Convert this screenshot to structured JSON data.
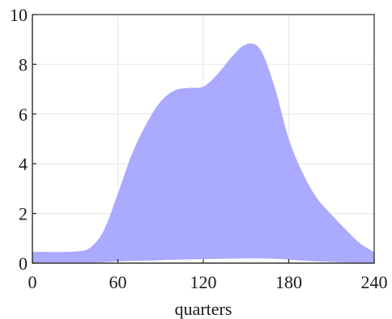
{
  "chart_data": {
    "type": "area",
    "title": "",
    "xlabel": "quarters",
    "ylabel": "",
    "xlim": [
      0,
      240
    ],
    "ylim": [
      0,
      10
    ],
    "x_ticks": [
      0,
      60,
      120,
      180,
      240
    ],
    "y_ticks": [
      0,
      2,
      4,
      6,
      8,
      10
    ],
    "grid": true,
    "fill_color": "#aaaaff",
    "band": {
      "x": [
        0,
        10,
        20,
        30,
        40,
        50,
        60,
        70,
        80,
        90,
        100,
        110,
        120,
        130,
        140,
        150,
        160,
        170,
        180,
        190,
        200,
        210,
        220,
        230,
        240
      ],
      "upper": [
        0.45,
        0.45,
        0.45,
        0.47,
        0.6,
        1.3,
        2.8,
        4.4,
        5.6,
        6.5,
        6.95,
        7.05,
        7.1,
        7.6,
        8.3,
        8.8,
        8.6,
        7.1,
        5.0,
        3.6,
        2.6,
        1.95,
        1.35,
        0.8,
        0.45
      ],
      "lower": [
        0.02,
        0.02,
        0.02,
        0.02,
        0.02,
        0.04,
        0.07,
        0.09,
        0.1,
        0.12,
        0.14,
        0.15,
        0.16,
        0.17,
        0.18,
        0.19,
        0.19,
        0.17,
        0.14,
        0.1,
        0.07,
        0.05,
        0.03,
        0.02,
        0.02
      ]
    }
  }
}
